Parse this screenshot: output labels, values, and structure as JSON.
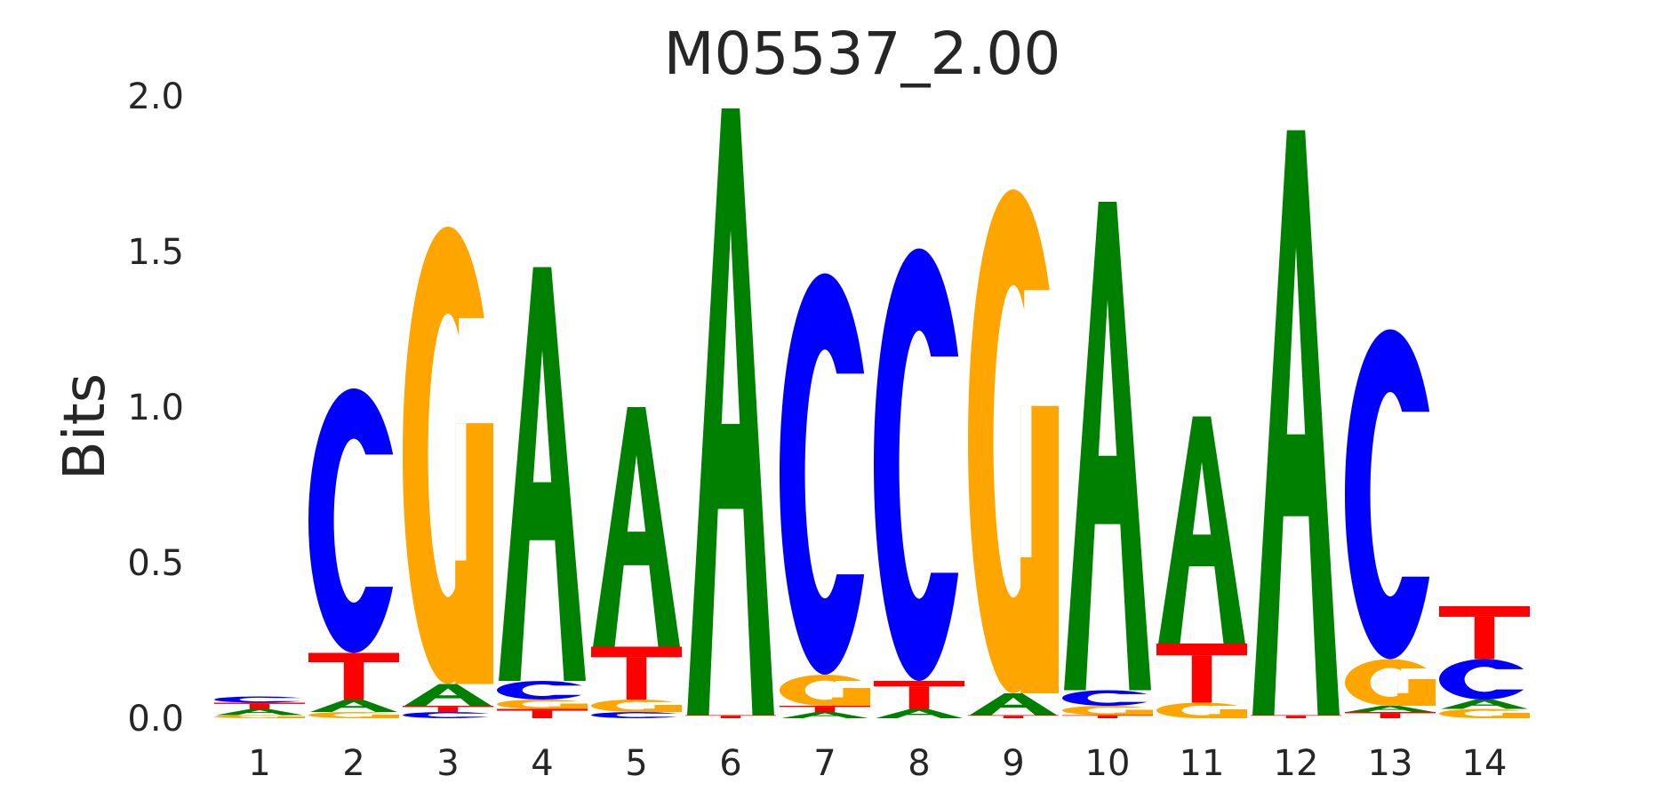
{
  "chart_data": {
    "type": "sequence-logo",
    "title": "M05537_2.00",
    "ylabel": "Bits",
    "ylim": [
      0,
      2
    ],
    "y_ticks": [
      "0.0",
      "0.5",
      "1.0",
      "1.5",
      "2.0"
    ],
    "positions": [
      "1",
      "2",
      "3",
      "4",
      "5",
      "6",
      "7",
      "8",
      "9",
      "10",
      "11",
      "12",
      "13",
      "14"
    ],
    "colors": {
      "A": "#008000",
      "C": "#0000ff",
      "G": "#ffa500",
      "T": "#ff0000"
    },
    "stacks": [
      [
        {
          "b": "G",
          "h": 0.01
        },
        {
          "b": "A",
          "h": 0.02
        },
        {
          "b": "T",
          "h": 0.02
        },
        {
          "b": "C",
          "h": 0.02
        }
      ],
      [
        {
          "b": "G",
          "h": 0.02
        },
        {
          "b": "A",
          "h": 0.04
        },
        {
          "b": "T",
          "h": 0.15
        },
        {
          "b": "C",
          "h": 0.85
        }
      ],
      [
        {
          "b": "C",
          "h": 0.02
        },
        {
          "b": "T",
          "h": 0.02
        },
        {
          "b": "A",
          "h": 0.07
        },
        {
          "b": "G",
          "h": 1.47
        }
      ],
      [
        {
          "b": "T",
          "h": 0.03
        },
        {
          "b": "G",
          "h": 0.03
        },
        {
          "b": "C",
          "h": 0.06
        },
        {
          "b": "A",
          "h": 1.33
        }
      ],
      [
        {
          "b": "C",
          "h": 0.02
        },
        {
          "b": "G",
          "h": 0.04
        },
        {
          "b": "T",
          "h": 0.17
        },
        {
          "b": "A",
          "h": 0.77
        }
      ],
      [
        {
          "b": "T",
          "h": 0.01
        },
        {
          "b": "A",
          "h": 1.95
        }
      ],
      [
        {
          "b": "A",
          "h": 0.02
        },
        {
          "b": "T",
          "h": 0.02
        },
        {
          "b": "G",
          "h": 0.1
        },
        {
          "b": "C",
          "h": 1.29
        }
      ],
      [
        {
          "b": "A",
          "h": 0.03
        },
        {
          "b": "T",
          "h": 0.09
        },
        {
          "b": "C",
          "h": 1.39
        }
      ],
      [
        {
          "b": "T",
          "h": 0.01
        },
        {
          "b": "A",
          "h": 0.07
        },
        {
          "b": "G",
          "h": 1.62
        }
      ],
      [
        {
          "b": "T",
          "h": 0.01
        },
        {
          "b": "G",
          "h": 0.03
        },
        {
          "b": "C",
          "h": 0.05
        },
        {
          "b": "A",
          "h": 1.57
        }
      ],
      [
        {
          "b": "G",
          "h": 0.05
        },
        {
          "b": "T",
          "h": 0.19
        },
        {
          "b": "A",
          "h": 0.73
        }
      ],
      [
        {
          "b": "T",
          "h": 0.01
        },
        {
          "b": "A",
          "h": 1.88
        }
      ],
      [
        {
          "b": "T",
          "h": 0.02
        },
        {
          "b": "A",
          "h": 0.02
        },
        {
          "b": "G",
          "h": 0.15
        },
        {
          "b": "C",
          "h": 1.06
        }
      ],
      [
        {
          "b": "G",
          "h": 0.03
        },
        {
          "b": "A",
          "h": 0.03
        },
        {
          "b": "C",
          "h": 0.13
        },
        {
          "b": "T",
          "h": 0.17
        }
      ]
    ]
  }
}
